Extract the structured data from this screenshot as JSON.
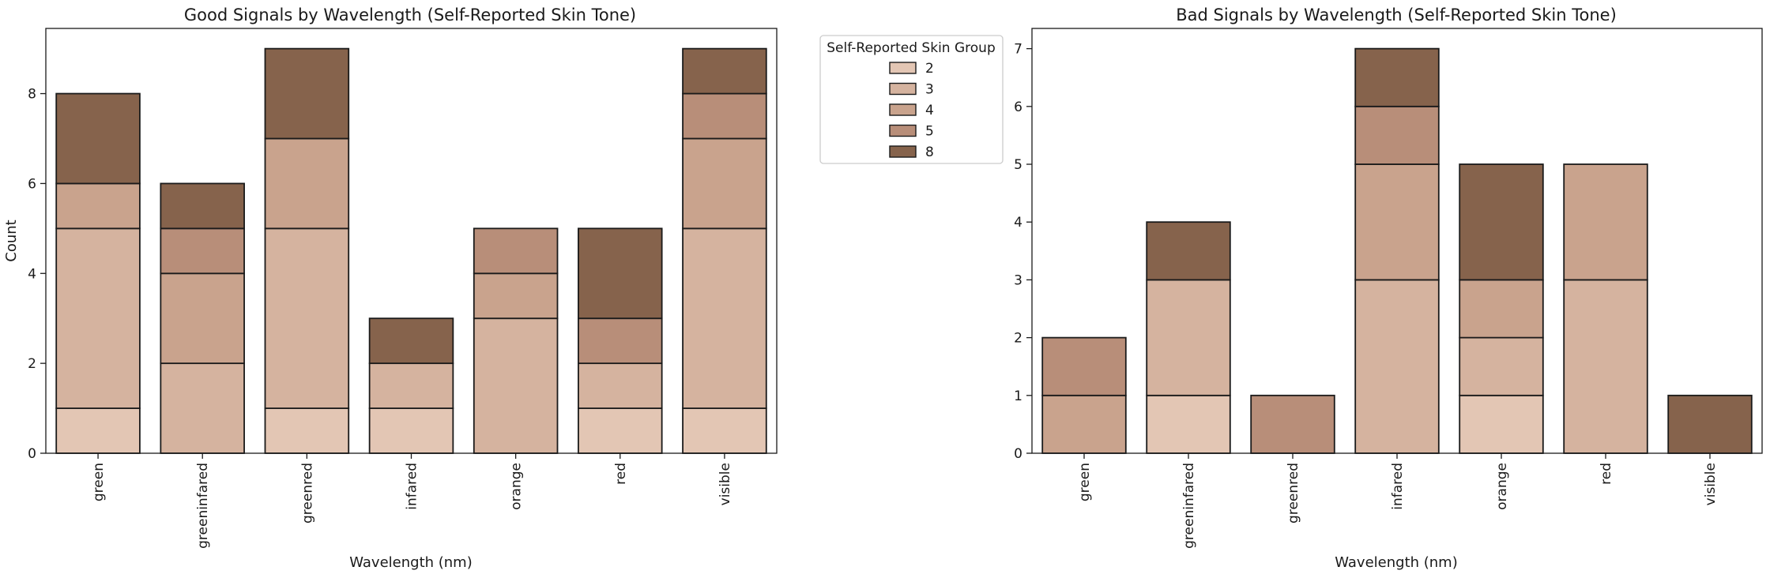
{
  "legend": {
    "title": "Self-Reported Skin Group",
    "placement": "outside, right of left chart, upper",
    "entries": [
      {
        "label": "2",
        "color": "#e3c6b4"
      },
      {
        "label": "3",
        "color": "#d5b39f"
      },
      {
        "label": "4",
        "color": "#c9a38d"
      },
      {
        "label": "5",
        "color": "#b88e79"
      },
      {
        "label": "8",
        "color": "#86634c"
      }
    ]
  },
  "chart_data": [
    {
      "type": "bar",
      "stacked": true,
      "title": "Good Signals by Wavelength (Self-Reported Skin Tone)",
      "xlabel": "Wavelength (nm)",
      "ylabel": "Count",
      "ylim": [
        0,
        9.45
      ],
      "yticks": [
        "0",
        "2",
        "4",
        "6",
        "8"
      ],
      "categories": [
        "green",
        "greeninfared",
        "greenred",
        "infared",
        "orange",
        "red",
        "visible"
      ],
      "series": [
        {
          "name": "2",
          "color": "#e3c6b4",
          "values": [
            1,
            0,
            1,
            1,
            0,
            1,
            1
          ]
        },
        {
          "name": "3",
          "color": "#d5b39f",
          "values": [
            4,
            2,
            4,
            1,
            3,
            1,
            4
          ]
        },
        {
          "name": "4",
          "color": "#c9a38d",
          "values": [
            1,
            2,
            2,
            0,
            1,
            0,
            2
          ]
        },
        {
          "name": "5",
          "color": "#b88e79",
          "values": [
            0,
            1,
            0,
            0,
            1,
            1,
            1
          ]
        },
        {
          "name": "8",
          "color": "#86634c",
          "values": [
            2,
            1,
            2,
            1,
            0,
            2,
            1
          ]
        }
      ],
      "grid": false
    },
    {
      "type": "bar",
      "stacked": true,
      "title": "Bad Signals by Wavelength (Self-Reported Skin Tone)",
      "xlabel": "Wavelength (nm)",
      "ylabel": "",
      "ylim": [
        0,
        7.35
      ],
      "yticks": [
        "0",
        "1",
        "2",
        "3",
        "4",
        "5",
        "6",
        "7"
      ],
      "categories": [
        "green",
        "greeninfared",
        "greenred",
        "infared",
        "orange",
        "red",
        "visible"
      ],
      "series": [
        {
          "name": "2",
          "color": "#e3c6b4",
          "values": [
            0,
            1,
            0,
            0,
            1,
            0,
            0
          ]
        },
        {
          "name": "3",
          "color": "#d5b39f",
          "values": [
            0,
            2,
            0,
            3,
            1,
            3,
            0
          ]
        },
        {
          "name": "4",
          "color": "#c9a38d",
          "values": [
            1,
            0,
            0,
            2,
            1,
            2,
            0
          ]
        },
        {
          "name": "5",
          "color": "#b88e79",
          "values": [
            1,
            0,
            1,
            1,
            0,
            0,
            0
          ]
        },
        {
          "name": "8",
          "color": "#86634c",
          "values": [
            0,
            1,
            0,
            1,
            2,
            0,
            1
          ]
        }
      ],
      "grid": false
    }
  ]
}
